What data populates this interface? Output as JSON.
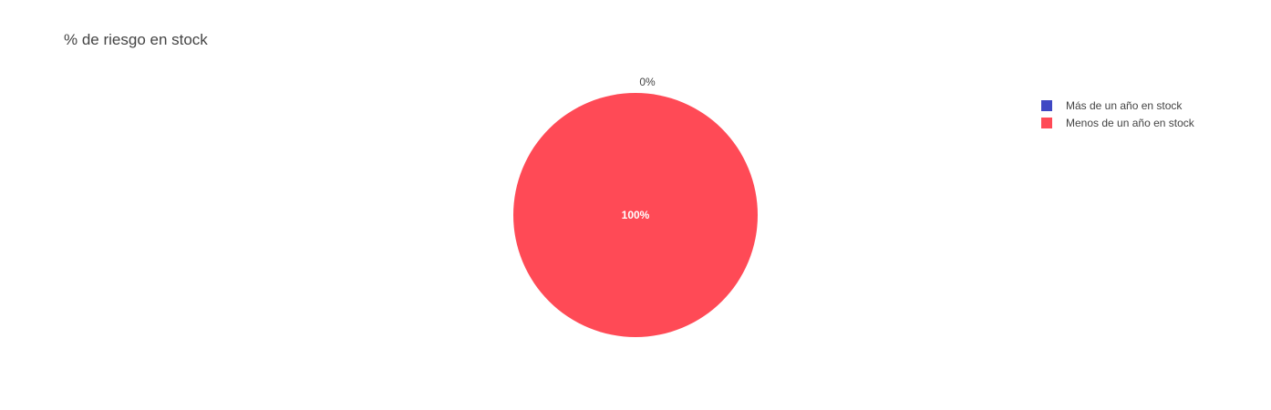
{
  "chart_data": {
    "type": "pie",
    "title": "% de riesgo en stock",
    "labels": [
      "Más de un año en stock",
      "Menos de un año en stock"
    ],
    "values": [
      0,
      100
    ],
    "text_labels": [
      "0%",
      "100%"
    ],
    "colors": [
      "#3f48c4",
      "#ff4a56"
    ],
    "legend_position": "top-right"
  }
}
